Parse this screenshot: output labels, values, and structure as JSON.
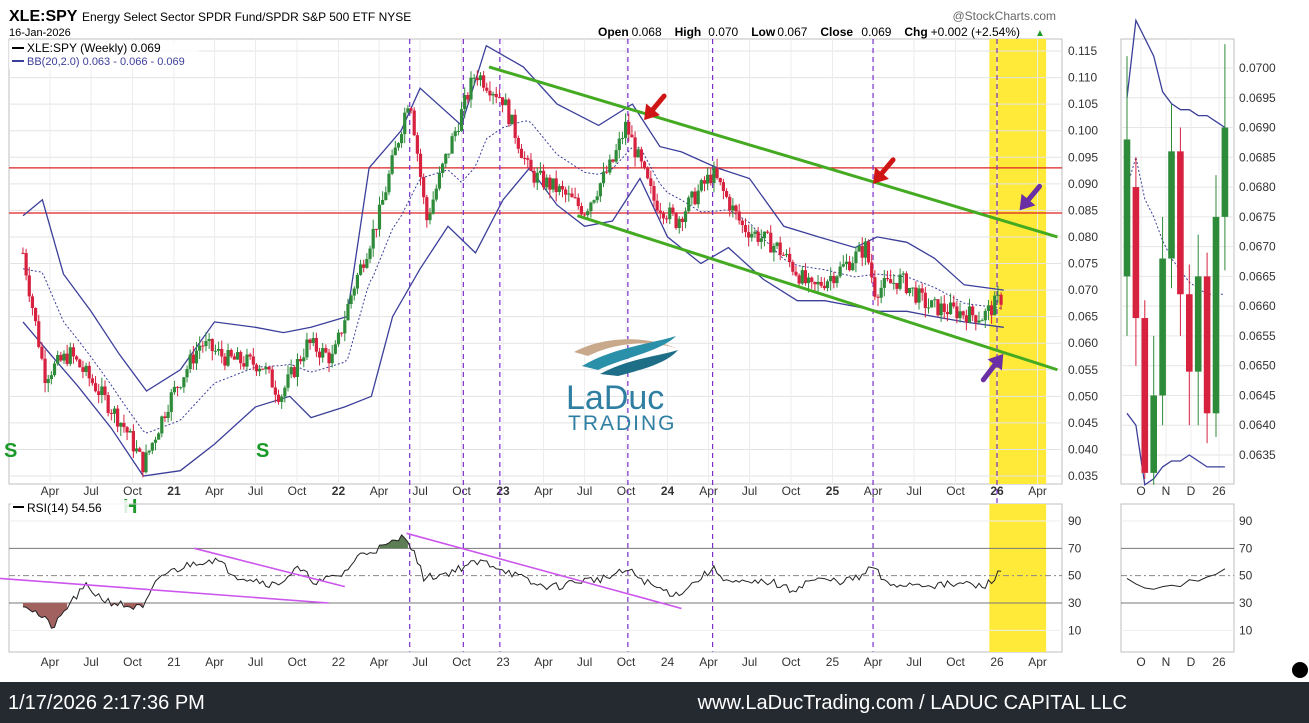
{
  "header": {
    "symbol": "XLE:SPY",
    "description": "Energy Select Sector SPDR Fund/SPDR S&P 500 ETF",
    "exchange": "NYSE",
    "date": "16-Jan-2026",
    "brand": "@StockCharts.com",
    "ohlc": [
      {
        "label": "Open",
        "value": "0.068"
      },
      {
        "label": "High",
        "value": "0.070"
      },
      {
        "label": "Low",
        "value": "0.067"
      },
      {
        "label": "Close",
        "value": "0.069"
      },
      {
        "label": "Chg",
        "value": "+0.002 (+2.54%)"
      }
    ],
    "legend_main": "XLE:SPY (Weekly) 0.069",
    "legend_bb": "BB(20,2.0) 0.063 - 0.066 - 0.069",
    "rsi_label": "RSI(14) 54.56",
    "ohlc_arrow": "▲"
  },
  "watermark": {
    "line1": "LaDuc",
    "line2": "TRADING"
  },
  "annotations": {
    "s_left": "S",
    "s_mid": "S",
    "h_mark": "H"
  },
  "footer": {
    "timestamp": "1/17/2026 2:17:36 PM",
    "site": "www.LaDucTrading.com / LADUC CAPITAL LLC"
  },
  "colors": {
    "up": "#2e8b3a",
    "down": "#d6213f",
    "bollinger": "#3c3f9a",
    "channel": "#44aa22",
    "resistance": "#dd2222",
    "highlight": "#ffea3a",
    "vline": "#7a2fc9",
    "rsi_line": "#222222",
    "trendline": "#cc55ee",
    "red_arrow": "#d01515",
    "purple_arrow": "#6a2fa5"
  },
  "chart_data": [
    {
      "type": "candlestick",
      "title": "XLE:SPY (Weekly)",
      "x_tick_labels": [
        "Apr",
        "Jul",
        "Oct",
        "21",
        "Apr",
        "Jul",
        "Oct",
        "22",
        "Apr",
        "Jul",
        "Oct",
        "23",
        "Apr",
        "Jul",
        "Oct",
        "24",
        "Apr",
        "Jul",
        "Oct",
        "25",
        "Apr",
        "Jul",
        "Oct",
        "26",
        "Apr"
      ],
      "x_range": [
        "2020-02-01",
        "2026-05-20"
      ],
      "y_ticks": [
        0.035,
        0.04,
        0.045,
        0.05,
        0.055,
        0.06,
        0.065,
        0.07,
        0.075,
        0.08,
        0.085,
        0.09,
        0.095,
        0.1,
        0.105,
        0.11,
        0.115
      ],
      "y_tick_labels": [
        "0.035",
        "0.040",
        "0.045",
        "0.050",
        "0.055",
        "0.060",
        "0.065",
        "0.070",
        "0.075",
        "0.080",
        "0.085",
        "0.090",
        "0.095",
        "0.100",
        "0.105",
        "0.110",
        "0.115"
      ],
      "ylim": [
        0.0335,
        0.1175
      ],
      "price_path": [
        [
          "2020-02-01",
          0.077
        ],
        [
          "2020-03-20",
          0.054
        ],
        [
          "2020-05-15",
          0.058
        ],
        [
          "2020-07-10",
          0.052
        ],
        [
          "2020-09-15",
          0.044
        ],
        [
          "2020-10-25",
          0.037
        ],
        [
          "2020-12-20",
          0.049
        ],
        [
          "2021-03-01",
          0.06
        ],
        [
          "2021-05-01",
          0.057
        ],
        [
          "2021-07-15",
          0.056
        ],
        [
          "2021-08-25",
          0.05
        ],
        [
          "2021-10-25",
          0.06
        ],
        [
          "2021-12-20",
          0.057
        ],
        [
          "2022-02-01",
          0.07
        ],
        [
          "2022-04-01",
          0.084
        ],
        [
          "2022-06-08",
          0.107
        ],
        [
          "2022-07-15",
          0.083
        ],
        [
          "2022-08-20",
          0.093
        ],
        [
          "2022-11-01",
          0.111
        ],
        [
          "2023-01-01",
          0.106
        ],
        [
          "2023-03-01",
          0.092
        ],
        [
          "2023-05-01",
          0.089
        ],
        [
          "2023-07-01",
          0.085
        ],
        [
          "2023-09-01",
          0.094
        ],
        [
          "2023-10-01",
          0.101
        ],
        [
          "2023-12-01",
          0.087
        ],
        [
          "2024-01-20",
          0.083
        ],
        [
          "2024-04-10",
          0.092
        ],
        [
          "2024-06-15",
          0.082
        ],
        [
          "2024-09-01",
          0.078
        ],
        [
          "2024-11-15",
          0.07
        ],
        [
          "2025-01-20",
          0.074
        ],
        [
          "2025-03-15",
          0.078
        ],
        [
          "2025-04-05",
          0.07
        ],
        [
          "2025-06-01",
          0.072
        ],
        [
          "2025-08-01",
          0.067
        ],
        [
          "2025-10-01",
          0.066
        ],
        [
          "2025-12-01",
          0.065
        ],
        [
          "2026-01-16",
          0.069
        ]
      ],
      "bollinger_bands": {
        "upper": [
          [
            "2020-02-01",
            0.084
          ],
          [
            "2020-03-15",
            0.087
          ],
          [
            "2020-05-01",
            0.073
          ],
          [
            "2020-07-01",
            0.066
          ],
          [
            "2020-09-01",
            0.058
          ],
          [
            "2020-11-01",
            0.051
          ],
          [
            "2021-01-15",
            0.055
          ],
          [
            "2021-04-01",
            0.064
          ],
          [
            "2021-07-01",
            0.063
          ],
          [
            "2021-09-01",
            0.062
          ],
          [
            "2021-11-01",
            0.063
          ],
          [
            "2022-01-20",
            0.065
          ],
          [
            "2022-03-10",
            0.093
          ],
          [
            "2022-05-20",
            0.1
          ],
          [
            "2022-07-01",
            0.108
          ],
          [
            "2022-10-01",
            0.101
          ],
          [
            "2022-11-25",
            0.116
          ],
          [
            "2023-02-15",
            0.112
          ],
          [
            "2023-05-01",
            0.105
          ],
          [
            "2023-08-01",
            0.101
          ],
          [
            "2023-10-15",
            0.105
          ],
          [
            "2023-12-15",
            0.097
          ],
          [
            "2024-02-01",
            0.096
          ],
          [
            "2024-04-20",
            0.093
          ],
          [
            "2024-07-01",
            0.091
          ],
          [
            "2024-09-15",
            0.082
          ],
          [
            "2024-12-01",
            0.08
          ],
          [
            "2025-02-20",
            0.078
          ],
          [
            "2025-04-10",
            0.08
          ],
          [
            "2025-06-15",
            0.079
          ],
          [
            "2025-08-15",
            0.076
          ],
          [
            "2025-10-20",
            0.071
          ],
          [
            "2026-01-16",
            0.07
          ]
        ],
        "lower": [
          [
            "2020-02-01",
            0.064
          ],
          [
            "2020-04-01",
            0.058
          ],
          [
            "2020-06-01",
            0.052
          ],
          [
            "2020-08-15",
            0.044
          ],
          [
            "2020-10-25",
            0.035
          ],
          [
            "2021-01-15",
            0.036
          ],
          [
            "2021-04-01",
            0.041
          ],
          [
            "2021-07-01",
            0.048
          ],
          [
            "2021-09-15",
            0.05
          ],
          [
            "2021-11-01",
            0.046
          ],
          [
            "2022-01-15",
            0.048
          ],
          [
            "2022-03-15",
            0.05
          ],
          [
            "2022-05-01",
            0.065
          ],
          [
            "2022-07-01",
            0.074
          ],
          [
            "2022-09-01",
            0.082
          ],
          [
            "2022-11-01",
            0.077
          ],
          [
            "2023-01-01",
            0.087
          ],
          [
            "2023-03-01",
            0.093
          ],
          [
            "2023-05-01",
            0.086
          ],
          [
            "2023-07-01",
            0.082
          ],
          [
            "2023-09-01",
            0.083
          ],
          [
            "2023-11-01",
            0.091
          ],
          [
            "2024-01-01",
            0.08
          ],
          [
            "2024-03-15",
            0.075
          ],
          [
            "2024-05-15",
            0.078
          ],
          [
            "2024-08-01",
            0.072
          ],
          [
            "2024-10-15",
            0.068
          ],
          [
            "2024-12-15",
            0.068
          ],
          [
            "2025-02-15",
            0.067
          ],
          [
            "2025-04-15",
            0.066
          ],
          [
            "2025-06-15",
            0.066
          ],
          [
            "2025-08-15",
            0.065
          ],
          [
            "2025-10-20",
            0.064
          ],
          [
            "2026-01-16",
            0.063
          ]
        ]
      },
      "resistance_lines": [
        0.093,
        0.0845
      ],
      "channel_lines": [
        {
          "from": [
            "2022-12-01",
            0.112
          ],
          "to": [
            "2026-05-15",
            0.08
          ]
        },
        {
          "from": [
            "2023-06-15",
            0.084
          ],
          "to": [
            "2026-05-15",
            0.055
          ]
        }
      ],
      "vertical_event_lines": [
        "2022-06-08",
        "2022-10-05",
        "2022-12-25",
        "2023-10-05",
        "2024-04-10",
        "2025-04-01",
        "2026-01-01"
      ],
      "highlight_range": [
        "2025-12-15",
        "2026-04-20"
      ],
      "arrows": [
        {
          "color": "red",
          "tip": [
            "2023-11-10",
            0.102
          ]
        },
        {
          "color": "red",
          "tip": [
            "2025-04-01",
            0.09
          ]
        },
        {
          "color": "purple",
          "tip": [
            "2026-02-20",
            0.085
          ]
        },
        {
          "color": "purple",
          "tip": [
            "2026-01-15",
            0.058
          ]
        }
      ]
    },
    {
      "type": "line",
      "title": "RSI(14)",
      "series": [
        {
          "name": "RSI(14)",
          "values": [
            [
              "2020-02-01",
              30
            ],
            [
              "2020-03-01",
              23
            ],
            [
              "2020-04-10",
              12
            ],
            [
              "2020-05-15",
              30
            ],
            [
              "2020-06-20",
              42
            ],
            [
              "2020-08-01",
              32
            ],
            [
              "2020-09-15",
              28
            ],
            [
              "2020-10-25",
              26
            ],
            [
              "2020-12-01",
              50
            ],
            [
              "2021-02-20",
              60
            ],
            [
              "2021-04-01",
              62
            ],
            [
              "2021-05-20",
              50
            ],
            [
              "2021-07-01",
              47
            ],
            [
              "2021-08-15",
              43
            ],
            [
              "2021-10-01",
              55
            ],
            [
              "2021-11-15",
              45
            ],
            [
              "2022-01-10",
              51
            ],
            [
              "2022-02-20",
              66
            ],
            [
              "2022-04-20",
              72
            ],
            [
              "2022-06-01",
              80
            ],
            [
              "2022-07-10",
              48
            ],
            [
              "2022-09-01",
              52
            ],
            [
              "2022-10-15",
              58
            ],
            [
              "2022-11-20",
              60
            ],
            [
              "2023-01-01",
              55
            ],
            [
              "2023-03-15",
              43
            ],
            [
              "2023-05-01",
              42
            ],
            [
              "2023-06-15",
              46
            ],
            [
              "2023-08-15",
              48
            ],
            [
              "2023-10-05",
              54
            ],
            [
              "2023-12-01",
              42
            ],
            [
              "2024-01-20",
              36
            ],
            [
              "2024-03-01",
              45
            ],
            [
              "2024-04-10",
              55
            ],
            [
              "2024-05-20",
              45
            ],
            [
              "2024-07-01",
              44
            ],
            [
              "2024-08-15",
              46
            ],
            [
              "2024-10-01",
              39
            ],
            [
              "2024-11-15",
              47
            ],
            [
              "2025-01-15",
              46
            ],
            [
              "2025-03-01",
              48
            ],
            [
              "2025-04-01",
              57
            ],
            [
              "2025-05-01",
              43
            ],
            [
              "2025-07-01",
              44
            ],
            [
              "2025-09-01",
              43
            ],
            [
              "2025-11-01",
              44
            ],
            [
              "2025-12-01",
              41
            ],
            [
              "2026-01-16",
              55
            ]
          ]
        }
      ],
      "ylim": [
        0,
        100
      ],
      "y_ticks": [
        10,
        30,
        50,
        70,
        90
      ],
      "y_tick_labels": [
        "10",
        "30",
        "50",
        "70",
        "90"
      ],
      "x_tick_labels": [
        "Apr",
        "Jul",
        "Oct",
        "21",
        "Apr",
        "Jul",
        "Oct",
        "22",
        "Apr",
        "Jul",
        "Oct",
        "23",
        "Apr",
        "Jul",
        "Oct",
        "24",
        "Apr",
        "Jul",
        "Oct",
        "25",
        "Apr",
        "Jul",
        "Oct",
        "26",
        "Apr"
      ],
      "trendlines": [
        {
          "from": [
            "2019-10-01",
            48
          ],
          "to": [
            "2021-12-10",
            30
          ]
        },
        {
          "from": [
            "2021-02-15",
            70
          ],
          "to": [
            "2022-01-15",
            42
          ]
        },
        {
          "from": [
            "2022-06-01",
            81
          ],
          "to": [
            "2024-02-01",
            26
          ]
        }
      ]
    },
    {
      "type": "candlestick",
      "title": "Zoom (daily)",
      "x_tick_labels": [
        "O",
        "N",
        "D",
        "26"
      ],
      "y_ticks": [
        0.0635,
        0.064,
        0.0645,
        0.065,
        0.0655,
        0.066,
        0.0665,
        0.067,
        0.0675,
        0.068,
        0.0685,
        0.069,
        0.0695,
        0.07
      ],
      "y_tick_labels": [
        "0.0635",
        "0.0640",
        "0.0645",
        "0.0650",
        "0.0655",
        "0.0660",
        "0.0665",
        "0.0670",
        "0.0675",
        "0.0680",
        "0.0685",
        "0.0690",
        "0.0695",
        "0.0700"
      ],
      "ylim": [
        0.0628,
        0.0707
      ],
      "candles": [
        {
          "o": 0.0665,
          "c": 0.0688,
          "h": 0.0702,
          "l": 0.0655
        },
        {
          "o": 0.068,
          "c": 0.0658,
          "h": 0.0685,
          "l": 0.065
        },
        {
          "o": 0.0658,
          "c": 0.0632,
          "h": 0.0661,
          "l": 0.0631
        },
        {
          "o": 0.0632,
          "c": 0.0645,
          "h": 0.0655,
          "l": 0.063
        },
        {
          "o": 0.0645,
          "c": 0.0668,
          "h": 0.0675,
          "l": 0.064
        },
        {
          "o": 0.0668,
          "c": 0.0686,
          "h": 0.0694,
          "l": 0.0663
        },
        {
          "o": 0.0686,
          "c": 0.0662,
          "h": 0.069,
          "l": 0.0655
        },
        {
          "o": 0.0662,
          "c": 0.0649,
          "h": 0.0667,
          "l": 0.064
        },
        {
          "o": 0.0649,
          "c": 0.0665,
          "h": 0.0672,
          "l": 0.064
        },
        {
          "o": 0.0665,
          "c": 0.0642,
          "h": 0.0669,
          "l": 0.0637
        },
        {
          "o": 0.0642,
          "c": 0.0675,
          "h": 0.0682,
          "l": 0.0638
        },
        {
          "o": 0.0675,
          "c": 0.069,
          "h": 0.0704,
          "l": 0.0666
        }
      ],
      "bollinger_bands": {
        "upper": [
          0.0695,
          0.0708,
          0.0705,
          0.0702,
          0.0696,
          0.0694,
          0.0693,
          0.0693,
          0.0692,
          0.0692,
          0.0691,
          0.069
        ],
        "mid": [
          0.068,
          0.0685,
          0.0678,
          0.0675,
          0.0671,
          0.0668,
          0.0666,
          0.0664,
          0.0663,
          0.0662,
          0.0662,
          0.0662
        ],
        "lower": [
          0.0642,
          0.064,
          0.063,
          0.0631,
          0.0633,
          0.0634,
          0.0634,
          0.0635,
          0.0634,
          0.0633,
          0.0633,
          0.0633
        ]
      }
    },
    {
      "type": "line",
      "title": "RSI(14) zoom",
      "series": [
        {
          "name": "RSI(14)",
          "values": [
            48,
            44,
            41,
            40,
            42,
            43,
            42,
            47,
            46,
            49,
            51,
            55
          ]
        }
      ],
      "ylim": [
        0,
        100
      ],
      "y_ticks": [
        10,
        30,
        50,
        70,
        90
      ],
      "y_tick_labels": [
        "10",
        "30",
        "50",
        "70",
        "90"
      ],
      "x_tick_labels": [
        "O",
        "N",
        "D",
        "26"
      ]
    }
  ]
}
